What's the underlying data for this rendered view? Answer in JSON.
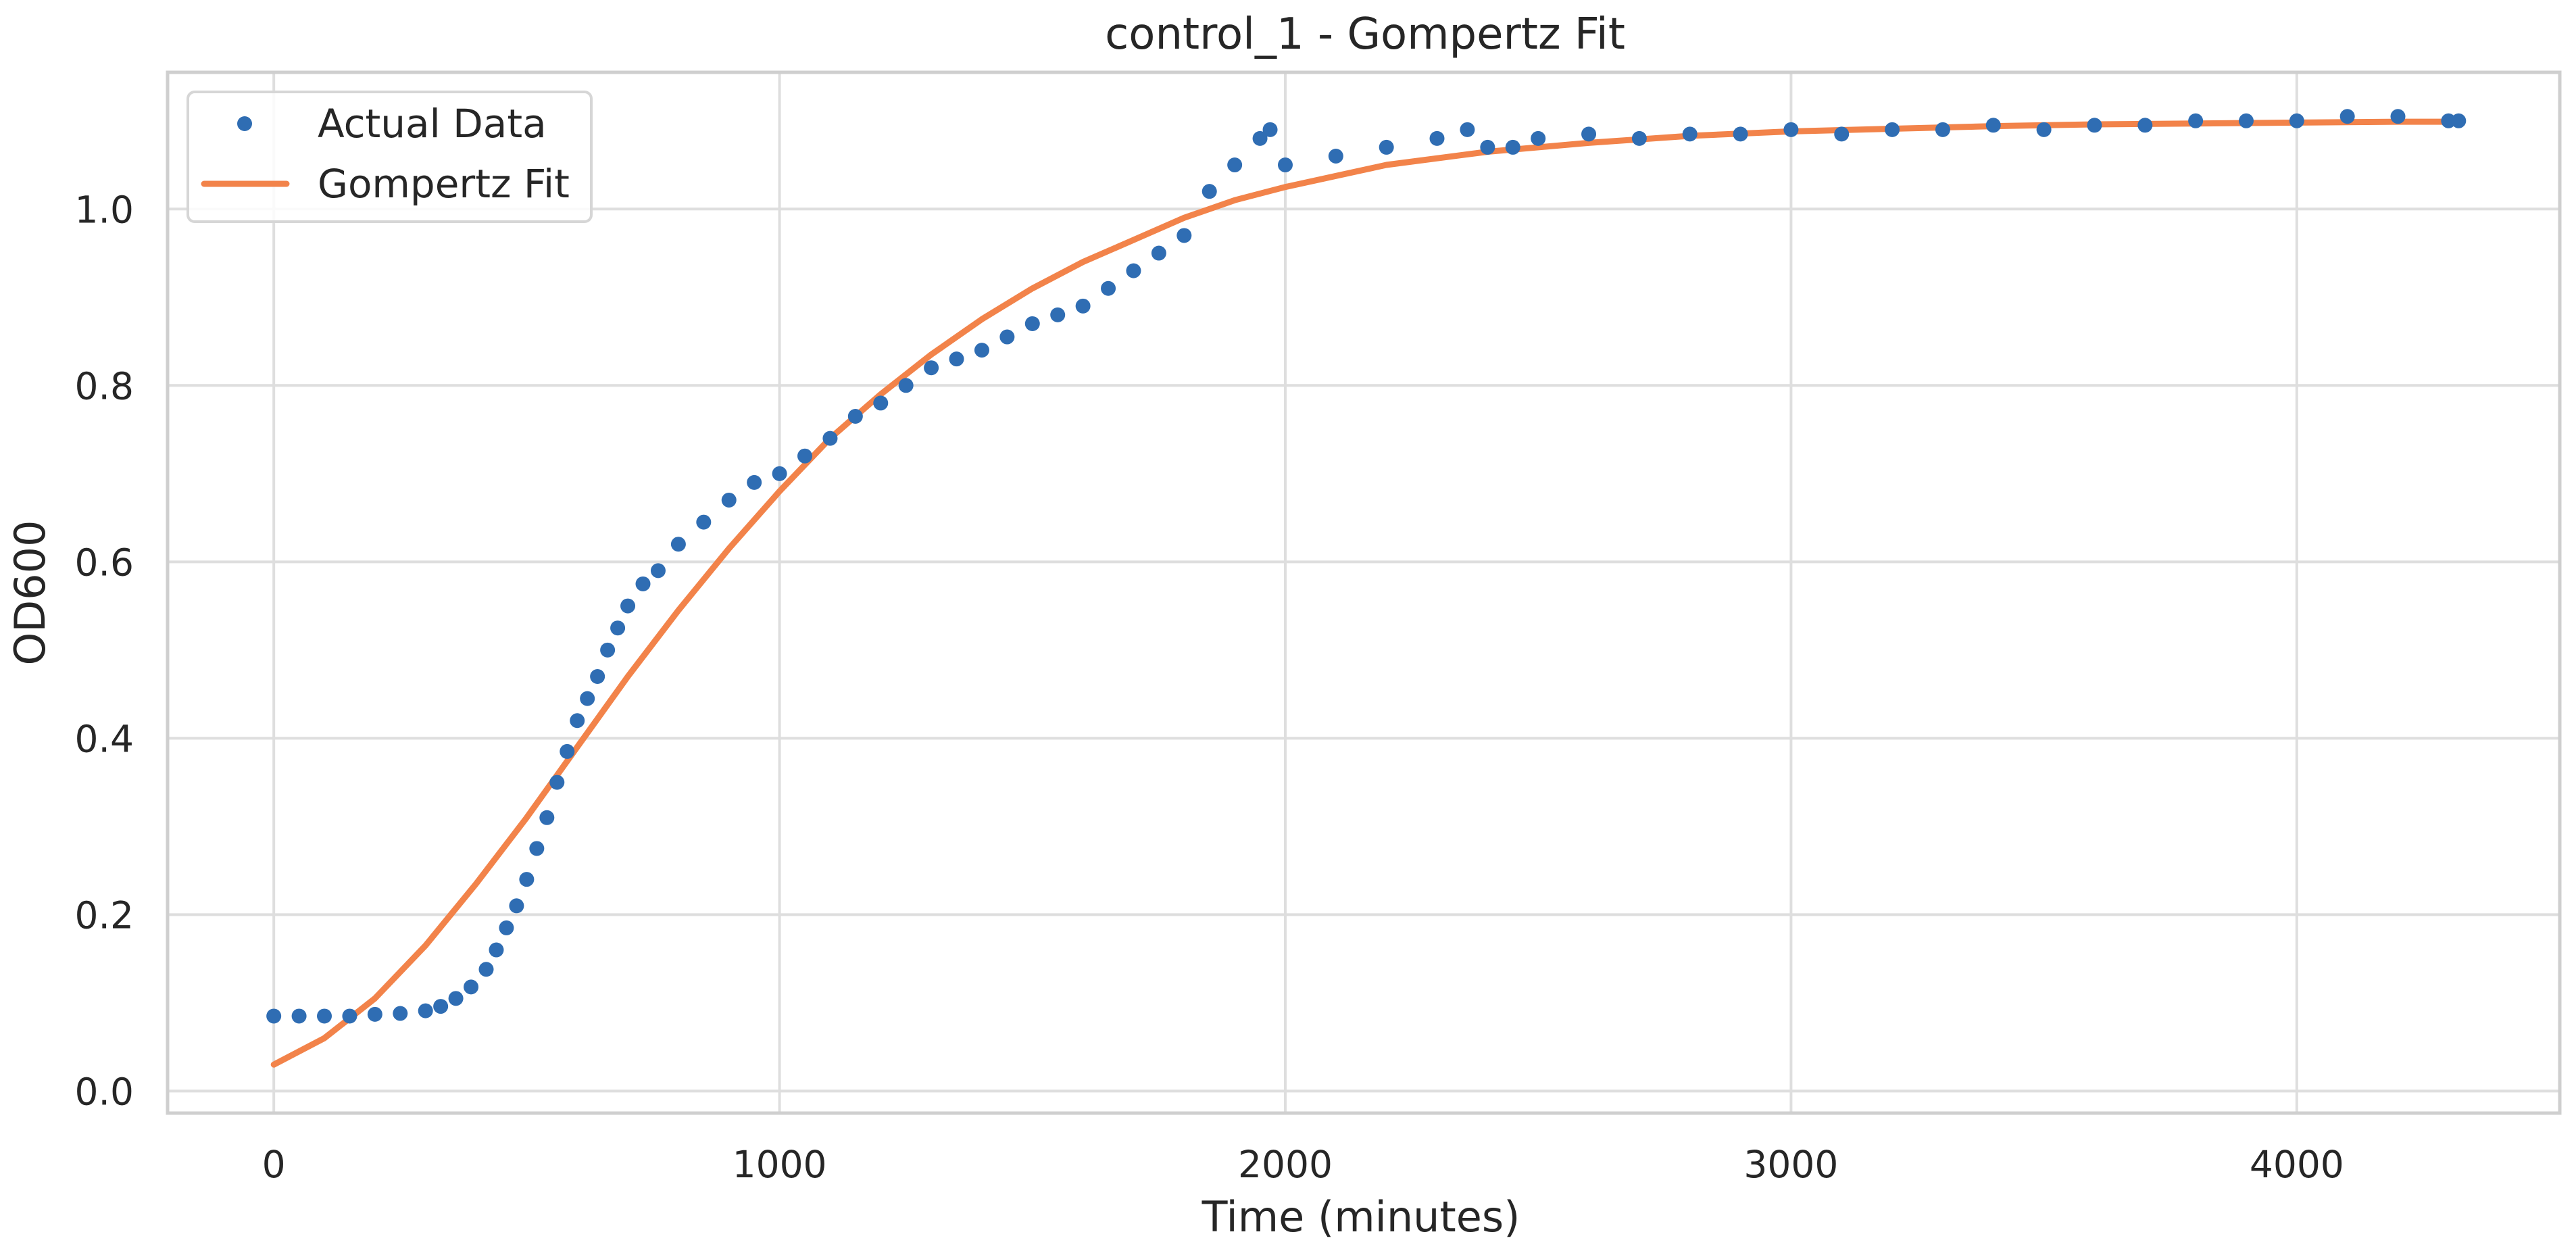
{
  "chart_data": {
    "type": "scatter",
    "title": "control_1 - Gompertz Fit",
    "xlabel": "Time (minutes)",
    "ylabel": "OD600",
    "xlim": [
      -210,
      4520
    ],
    "ylim": [
      -0.025,
      1.155
    ],
    "xticks": [
      0,
      1000,
      2000,
      3000,
      4000
    ],
    "xtick_labels": [
      "0",
      "1000",
      "2000",
      "3000",
      "4000"
    ],
    "yticks": [
      0.0,
      0.2,
      0.4,
      0.6,
      0.8,
      1.0
    ],
    "ytick_labels": [
      "0.0",
      "0.2",
      "0.4",
      "0.6",
      "0.8",
      "1.0"
    ],
    "grid": true,
    "legend_position": "top-left",
    "series": [
      {
        "name": "Actual Data",
        "kind": "scatter",
        "color": "#2f6db3",
        "x": [
          0,
          50,
          100,
          150,
          200,
          250,
          300,
          330,
          360,
          390,
          420,
          440,
          460,
          480,
          500,
          520,
          540,
          560,
          580,
          600,
          620,
          640,
          660,
          680,
          700,
          730,
          760,
          800,
          850,
          900,
          950,
          1000,
          1050,
          1100,
          1150,
          1200,
          1250,
          1300,
          1350,
          1400,
          1450,
          1500,
          1550,
          1600,
          1650,
          1700,
          1750,
          1800,
          1850,
          1900,
          1950,
          1970,
          2000,
          2100,
          2200,
          2300,
          2360,
          2400,
          2450,
          2500,
          2600,
          2700,
          2800,
          2900,
          3000,
          3100,
          3200,
          3300,
          3400,
          3500,
          3600,
          3700,
          3800,
          3900,
          4000,
          4100,
          4200,
          4300,
          4320
        ],
        "y": [
          0.085,
          0.085,
          0.085,
          0.085,
          0.087,
          0.088,
          0.091,
          0.096,
          0.105,
          0.118,
          0.138,
          0.16,
          0.185,
          0.21,
          0.24,
          0.275,
          0.31,
          0.35,
          0.385,
          0.42,
          0.445,
          0.47,
          0.5,
          0.525,
          0.55,
          0.575,
          0.59,
          0.62,
          0.645,
          0.67,
          0.69,
          0.7,
          0.72,
          0.74,
          0.765,
          0.78,
          0.8,
          0.82,
          0.83,
          0.84,
          0.855,
          0.87,
          0.88,
          0.89,
          0.91,
          0.93,
          0.95,
          0.97,
          1.02,
          1.05,
          1.08,
          1.09,
          1.05,
          1.06,
          1.07,
          1.08,
          1.09,
          1.07,
          1.07,
          1.08,
          1.085,
          1.08,
          1.085,
          1.085,
          1.09,
          1.085,
          1.09,
          1.09,
          1.095,
          1.09,
          1.095,
          1.095,
          1.1,
          1.1,
          1.1,
          1.105,
          1.105,
          1.1,
          1.1
        ]
      },
      {
        "name": "Gompertz Fit",
        "kind": "line",
        "color": "#f2834a",
        "x": [
          0,
          100,
          200,
          300,
          400,
          500,
          600,
          700,
          800,
          900,
          1000,
          1100,
          1200,
          1300,
          1400,
          1500,
          1600,
          1700,
          1800,
          1900,
          2000,
          2200,
          2400,
          2600,
          2800,
          3000,
          3200,
          3400,
          3600,
          3800,
          4000,
          4200,
          4320
        ],
        "y": [
          0.03,
          0.06,
          0.105,
          0.165,
          0.235,
          0.31,
          0.39,
          0.47,
          0.545,
          0.615,
          0.68,
          0.74,
          0.79,
          0.835,
          0.875,
          0.91,
          0.94,
          0.965,
          0.99,
          1.01,
          1.025,
          1.05,
          1.065,
          1.075,
          1.083,
          1.088,
          1.091,
          1.094,
          1.096,
          1.097,
          1.098,
          1.099,
          1.099
        ]
      }
    ]
  }
}
